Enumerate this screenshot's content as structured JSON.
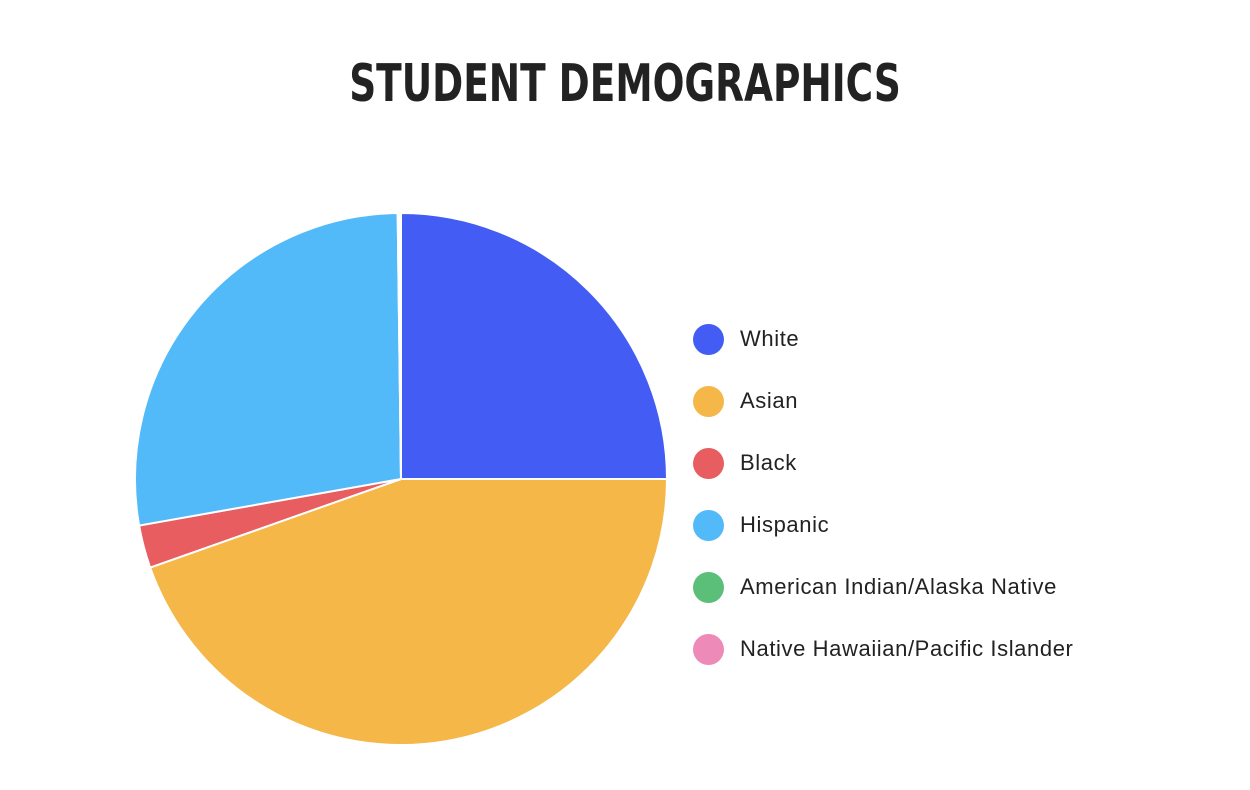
{
  "chart_data": {
    "type": "pie",
    "title": "STUDENT DEMOGRAPHICS",
    "unit": "percent",
    "legend_position": "right",
    "series": [
      {
        "name": "White",
        "value": 25.0,
        "color": "#435df4"
      },
      {
        "name": "Asian",
        "value": 44.6,
        "color": "#f4b748"
      },
      {
        "name": "Black",
        "value": 2.6,
        "color": "#e85d60"
      },
      {
        "name": "Hispanic",
        "value": 27.6,
        "color": "#52baf8"
      },
      {
        "name": "American Indian/Alaska Native",
        "value": 0.1,
        "color": "#5bbf7a"
      },
      {
        "name": "Native Hawaiian/Pacific Islander",
        "value": 0.1,
        "color": "#ee8ab8"
      }
    ]
  }
}
